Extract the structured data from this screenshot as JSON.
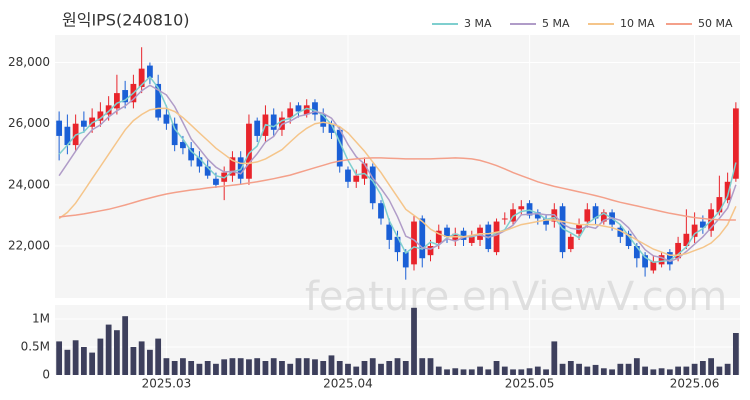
{
  "chart_data": [
    {
      "type": "candlestick",
      "title": "원익IPS(240810)",
      "open": [
        26100,
        25900,
        25300,
        26100,
        25900,
        26100,
        26300,
        26500,
        27100,
        26700,
        27200,
        27900,
        27300,
        26300,
        26000,
        25400,
        25200,
        24900,
        24600,
        24200,
        24100,
        24300,
        24900,
        24200,
        26100,
        25600,
        26300,
        25800,
        26200,
        26600,
        26300,
        26700,
        26300,
        26000,
        25800,
        24500,
        24100,
        24200,
        24600,
        23400,
        22700,
        22300,
        21800,
        21400,
        22900,
        21700,
        22100,
        22600,
        22200,
        22500,
        22100,
        22200,
        22700,
        21800,
        22900,
        22800,
        23200,
        23400,
        23100,
        22900,
        22800,
        23300,
        21900,
        22400,
        22800,
        23300,
        22800,
        23100,
        22600,
        22400,
        22000,
        21700,
        21200,
        21400,
        21800,
        21600,
        22000,
        22300,
        22800,
        22500,
        23100,
        23500,
        24200
      ],
      "high": [
        26400,
        26300,
        26300,
        26400,
        26500,
        26700,
        26900,
        27600,
        27400,
        27600,
        28500,
        28000,
        27600,
        26600,
        26200,
        25600,
        25400,
        25100,
        24800,
        24400,
        24600,
        25100,
        25100,
        26300,
        26200,
        26600,
        26500,
        26400,
        26700,
        26700,
        26800,
        26800,
        26500,
        26100,
        25900,
        24600,
        24500,
        24900,
        24700,
        23500,
        22900,
        22500,
        21900,
        23000,
        23000,
        22200,
        22700,
        22700,
        22600,
        22600,
        22500,
        22700,
        22800,
        22900,
        23100,
        23400,
        23500,
        23500,
        23200,
        23000,
        23400,
        23400,
        22400,
        22900,
        23400,
        23400,
        23200,
        23200,
        22700,
        22500,
        22100,
        21800,
        21700,
        21800,
        21900,
        22300,
        23200,
        23100,
        23000,
        23400,
        24300,
        24400,
        26700
      ],
      "low": [
        24800,
        25000,
        25100,
        25700,
        25700,
        25900,
        26100,
        26300,
        26500,
        26500,
        27000,
        27300,
        26100,
        25800,
        25100,
        25000,
        24600,
        24400,
        24200,
        23900,
        23500,
        24100,
        24000,
        24000,
        25400,
        25400,
        25600,
        25600,
        26000,
        26200,
        26200,
        26100,
        25700,
        25500,
        24400,
        23900,
        23900,
        24000,
        23200,
        22700,
        21900,
        21500,
        20900,
        21200,
        21300,
        21500,
        21900,
        22100,
        22000,
        22000,
        22000,
        22000,
        21800,
        21700,
        22700,
        22700,
        23000,
        22900,
        22700,
        22500,
        22600,
        21600,
        21800,
        22200,
        22600,
        22700,
        22700,
        22500,
        22100,
        21900,
        21300,
        21000,
        21100,
        21300,
        21200,
        21500,
        21900,
        22100,
        22400,
        22300,
        23000,
        23400,
        24100
      ],
      "close": [
        25600,
        25300,
        26000,
        25900,
        26200,
        26400,
        26600,
        27000,
        26700,
        27300,
        27800,
        27500,
        26200,
        26000,
        25300,
        25200,
        24800,
        24600,
        24300,
        24000,
        24400,
        24900,
        24200,
        26000,
        25600,
        26300,
        25800,
        26200,
        26500,
        26400,
        26600,
        26300,
        25900,
        25700,
        24600,
        24100,
        24300,
        24700,
        23400,
        22900,
        22200,
        21800,
        21300,
        22800,
        21600,
        22000,
        22500,
        22300,
        22400,
        22200,
        22300,
        22600,
        21900,
        22800,
        22900,
        23200,
        23300,
        23000,
        22900,
        22700,
        23200,
        21800,
        22300,
        22700,
        23200,
        22900,
        23100,
        22700,
        22300,
        22000,
        21600,
        21300,
        21500,
        21700,
        21400,
        22100,
        22400,
        22700,
        22600,
        23200,
        23600,
        24100,
        26500
      ],
      "up_color": "#e8242b",
      "down_color": "#1a5fd6",
      "series": [
        {
          "name": "3 MA",
          "color": "#7fcfcf",
          "values": [
            25000,
            25300,
            25630,
            25730,
            26030,
            26170,
            26400,
            26670,
            26770,
            27000,
            27270,
            27530,
            27170,
            26570,
            25830,
            25500,
            25100,
            24870,
            24570,
            24300,
            24230,
            24430,
            24500,
            25030,
            25270,
            25970,
            25900,
            26100,
            26170,
            26370,
            26500,
            26430,
            26270,
            25970,
            25400,
            24800,
            24330,
            24370,
            24130,
            23670,
            22830,
            22300,
            21770,
            21970,
            21900,
            22130,
            22030,
            22270,
            22400,
            22300,
            22300,
            22370,
            22270,
            22430,
            22530,
            22970,
            23130,
            23170,
            23070,
            22870,
            22930,
            22570,
            22430,
            22270,
            22730,
            22930,
            23070,
            22900,
            22700,
            22330,
            21970,
            21630,
            21470,
            21500,
            21530,
            21730,
            21970,
            22400,
            22570,
            22830,
            23130,
            23630,
            24730
          ]
        },
        {
          "name": "5 MA",
          "color": "#b09cc8",
          "values": [
            24300,
            24700,
            25100,
            25500,
            25800,
            25960,
            26220,
            26420,
            26580,
            26800,
            27080,
            27260,
            27100,
            26940,
            26560,
            26040,
            25500,
            25180,
            24840,
            24580,
            24420,
            24440,
            24360,
            24700,
            25020,
            25400,
            25580,
            25980,
            26080,
            26240,
            26300,
            26400,
            26340,
            26180,
            25820,
            25320,
            24920,
            24680,
            24220,
            23880,
            23500,
            22960,
            22320,
            22200,
            21940,
            21900,
            22040,
            22240,
            22160,
            22280,
            22340,
            22360,
            22280,
            22360,
            22500,
            22680,
            23020,
            23040,
            23060,
            23020,
            23020,
            22720,
            22580,
            22540,
            22640,
            22580,
            22840,
            22920,
            22840,
            22600,
            22220,
            21880,
            21680,
            21620,
            21500,
            21600,
            21820,
            22060,
            22300,
            22600,
            22900,
            23240,
            24000
          ]
        },
        {
          "name": "10 MA",
          "color": "#f5c58a",
          "values": [
            22900,
            23100,
            23400,
            23800,
            24200,
            24600,
            25000,
            25400,
            25800,
            26100,
            26300,
            26450,
            26500,
            26500,
            26400,
            26200,
            25950,
            25700,
            25450,
            25200,
            25000,
            24800,
            24700,
            24700,
            24750,
            24850,
            25000,
            25150,
            25400,
            25650,
            25850,
            26000,
            26050,
            26000,
            25900,
            25700,
            25400,
            25100,
            24750,
            24400,
            24000,
            23600,
            23200,
            23000,
            22800,
            22550,
            22400,
            22300,
            22300,
            22300,
            22350,
            22400,
            22400,
            22450,
            22500,
            22600,
            22700,
            22750,
            22800,
            22850,
            22850,
            22800,
            22750,
            22700,
            22700,
            22700,
            22650,
            22600,
            22500,
            22350,
            22200,
            22050,
            21900,
            21800,
            21700,
            21700,
            21750,
            21850,
            21950,
            22100,
            22350,
            22700,
            23300
          ]
        },
        {
          "name": "50 MA",
          "color": "#f4a08a",
          "values": [
            22950,
            22980,
            23010,
            23050,
            23100,
            23150,
            23200,
            23270,
            23340,
            23420,
            23500,
            23570,
            23640,
            23700,
            23750,
            23790,
            23830,
            23860,
            23900,
            23930,
            23960,
            23990,
            24020,
            24060,
            24100,
            24150,
            24200,
            24260,
            24320,
            24400,
            24480,
            24560,
            24640,
            24720,
            24780,
            24820,
            24850,
            24870,
            24880,
            24880,
            24870,
            24860,
            24850,
            24850,
            24850,
            24850,
            24860,
            24870,
            24880,
            24870,
            24850,
            24800,
            24720,
            24630,
            24520,
            24400,
            24300,
            24200,
            24100,
            24020,
            23950,
            23890,
            23830,
            23770,
            23710,
            23650,
            23580,
            23500,
            23430,
            23370,
            23310,
            23250,
            23190,
            23130,
            23070,
            23020,
            22970,
            22930,
            22900,
            22870,
            22860,
            22850,
            22850
          ]
        }
      ],
      "legend": "top-right",
      "ylim": [
        20300,
        28900
      ],
      "yticks": [
        {
          "value": 22000,
          "label": "22,000"
        },
        {
          "value": 24000,
          "label": "24,000"
        },
        {
          "value": 26000,
          "label": "26,000"
        },
        {
          "value": 28000,
          "label": "28,000"
        }
      ],
      "watermark": "feature.enViewV.com"
    },
    {
      "type": "bar",
      "color": "#3d3f5c",
      "categories": [
        null,
        null,
        null,
        null,
        null,
        null,
        null,
        null,
        null,
        null,
        null,
        null,
        null,
        "2025.03",
        null,
        null,
        null,
        null,
        null,
        null,
        null,
        null,
        null,
        null,
        null,
        null,
        null,
        null,
        null,
        null,
        null,
        null,
        null,
        null,
        null,
        "2025.04",
        null,
        null,
        null,
        null,
        null,
        null,
        null,
        null,
        null,
        null,
        null,
        null,
        null,
        null,
        null,
        null,
        null,
        null,
        null,
        null,
        null,
        "2025.05",
        null,
        null,
        null,
        null,
        null,
        null,
        null,
        null,
        null,
        null,
        null,
        null,
        null,
        null,
        null,
        null,
        null,
        null,
        null,
        "2025.06",
        null,
        null,
        null,
        null,
        null
      ],
      "values": [
        600000,
        450000,
        620000,
        500000,
        400000,
        650000,
        900000,
        800000,
        1050000,
        500000,
        600000,
        450000,
        650000,
        300000,
        250000,
        300000,
        250000,
        200000,
        250000,
        200000,
        280000,
        300000,
        300000,
        280000,
        300000,
        250000,
        300000,
        250000,
        200000,
        300000,
        300000,
        280000,
        250000,
        350000,
        250000,
        200000,
        150000,
        250000,
        300000,
        200000,
        250000,
        300000,
        250000,
        1200000,
        300000,
        300000,
        150000,
        100000,
        120000,
        100000,
        100000,
        150000,
        100000,
        250000,
        150000,
        100000,
        100000,
        120000,
        150000,
        100000,
        600000,
        200000,
        250000,
        200000,
        150000,
        180000,
        120000,
        100000,
        200000,
        200000,
        300000,
        150000,
        100000,
        120000,
        100000,
        150000,
        150000,
        200000,
        250000,
        300000,
        150000,
        200000,
        750000
      ],
      "ylim": [
        0,
        1250000
      ],
      "yticks": [
        0,
        {
          "value": 500000,
          "label": "0.5M"
        },
        {
          "value": 1000000,
          "label": "1M"
        }
      ]
    }
  ]
}
